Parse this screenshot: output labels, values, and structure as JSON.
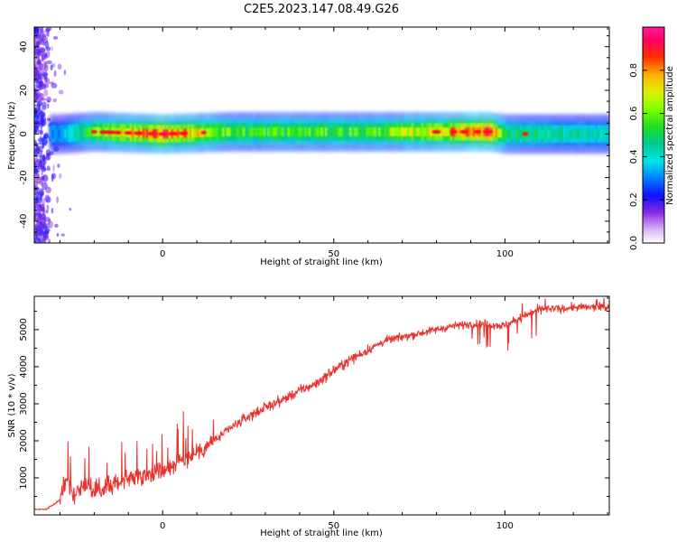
{
  "title": "C2E5.2023.147.08.49.G26",
  "chart_data": [
    {
      "type": "heatmap",
      "xlabel": "Height of straight line (km)",
      "ylabel": "Frequency (Hz)",
      "xlim": [
        -37.5,
        130.5
      ],
      "ylim": [
        -50,
        49
      ],
      "x_ticks": [
        0,
        50,
        100
      ],
      "x_tick_labels": [
        "0",
        "50",
        "100"
      ],
      "y_ticks": [
        -40,
        -20,
        0,
        20,
        40
      ],
      "y_tick_labels": [
        "-40",
        "-20",
        "0",
        "20",
        "40"
      ],
      "colorbar": {
        "label": "Normalized spectral amplitude",
        "range": [
          0,
          1
        ],
        "ticks": [
          0.0,
          0.2,
          0.4,
          0.6,
          0.8
        ],
        "tick_labels": [
          "0.0",
          "0.2",
          "0.4",
          "0.6",
          "0.8"
        ],
        "colormap": "gist_ncar"
      },
      "ridge": {
        "description": "dominant frequency line",
        "heights": [
          -30,
          -20,
          0,
          20,
          40,
          60,
          80,
          95,
          100,
          110,
          130
        ],
        "frequency_hz": [
          0,
          1,
          0,
          1,
          1,
          1,
          1,
          1,
          0,
          0,
          0
        ],
        "amplitude": [
          0.3,
          0.6,
          0.85,
          0.55,
          0.55,
          0.55,
          0.7,
          0.9,
          0.5,
          0.45,
          0.4
        ]
      },
      "grid": false
    },
    {
      "type": "line",
      "xlabel": "Height of straight line (km)",
      "ylabel": "SNR (10 * v/v)",
      "xlim": [
        -37.5,
        130.5
      ],
      "ylim": [
        0,
        5900
      ],
      "x_ticks": [
        0,
        50,
        100
      ],
      "x_tick_labels": [
        "0",
        "50",
        "100"
      ],
      "y_ticks": [
        1000,
        2000,
        3000,
        4000,
        5000
      ],
      "y_tick_labels": [
        "1000",
        "2000",
        "3000",
        "4000",
        "5000"
      ],
      "color": "#e8322c",
      "series": [
        {
          "x": [
            -37.5,
            -34,
            -30,
            -28,
            -27,
            -26,
            -25,
            -22,
            -20,
            -18,
            -15,
            -10,
            -5,
            0,
            5,
            10,
            15,
            20,
            25,
            30,
            35,
            40,
            45,
            50,
            55,
            60,
            65,
            70,
            75,
            80,
            85,
            90,
            95,
            100,
            105,
            110,
            115,
            120,
            125,
            130.5
          ],
          "values": [
            150,
            150,
            400,
            1100,
            800,
            500,
            700,
            900,
            600,
            700,
            800,
            1000,
            1100,
            1200,
            1450,
            1700,
            2000,
            2350,
            2650,
            2900,
            3100,
            3350,
            3550,
            3900,
            4200,
            4450,
            4700,
            4800,
            4900,
            5000,
            5100,
            5150,
            5150,
            5100,
            5350,
            5550,
            5550,
            5600,
            5600,
            5600
          ]
        }
      ],
      "grid": false
    }
  ]
}
